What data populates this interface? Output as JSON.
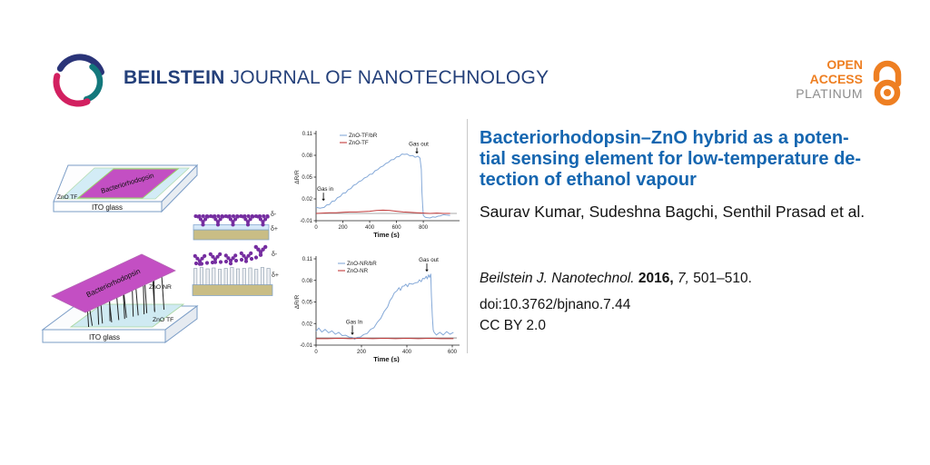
{
  "header": {
    "journal_bold": "BEILSTEIN",
    "journal_rest": " JOURNAL OF NANOTECHNOLOGY",
    "logo_colors": {
      "navy": "#2a3478",
      "teal": "#13787c",
      "crimson": "#d22060"
    },
    "open_access": {
      "line1": "OPEN",
      "line2": "ACCESS",
      "line3": "PLATINUM",
      "orange": "#ee7f22",
      "gray": "#8d8d8d"
    }
  },
  "article": {
    "title_lines": [
      "Bacteriorhodopsin–ZnO hybrid as a poten-",
      "tial sensing element for low-temperature de-",
      "tection of ethanol vapour"
    ],
    "title_color": "#1566b0",
    "authors": "Saurav Kumar, Sudeshna Bagchi, Senthil Prasad et al.",
    "citation": {
      "journal": "Beilstein J. Nanotechnol.",
      "year": "2016,",
      "volume": "7,",
      "pages": "501–510."
    },
    "doi": "doi:10.3762/bjnano.7.44",
    "license": "CC BY 2.0"
  },
  "figure": {
    "top_schematic": {
      "substrate": "ITO glass",
      "film": "ZnO TF",
      "protein": "Bacteriorhodopsin",
      "delta_minus": "δ-",
      "delta_plus": "δ+"
    },
    "bottom_schematic": {
      "substrate": "ITO glass",
      "film": "ZnO TF",
      "nanorods": "ZnO NR",
      "protein": "Bacteriorhodopsin",
      "delta_minus": "δ-",
      "delta_plus": "δ+"
    }
  },
  "chart_data": [
    {
      "type": "line",
      "xlabel": "Time (s)",
      "ylabel": "ΔR/R",
      "xlim": [
        0,
        1050
      ],
      "ylim": [
        -0.01,
        0.11
      ],
      "xticks": [
        0,
        200,
        400,
        600,
        800
      ],
      "yticks": [
        -0.01,
        0.02,
        0.05,
        0.08,
        0.11
      ],
      "grid": false,
      "legend_position": "top-left-inside",
      "zero_line": true,
      "annotations": [
        {
          "text": "Gas in",
          "x": 55,
          "text_y": 0.031,
          "tip_y": 0.017
        },
        {
          "text": "Gas out",
          "x": 752,
          "text_y": 0.093,
          "tip_y": 0.082
        }
      ],
      "series": [
        {
          "name": "ZnO-TF/bR",
          "color": "#85a9d8",
          "noisy": true,
          "x": [
            0,
            15,
            30,
            45,
            60,
            80,
            100,
            120,
            140,
            160,
            180,
            200,
            220,
            240,
            260,
            280,
            300,
            320,
            340,
            360,
            380,
            400,
            420,
            440,
            460,
            480,
            500,
            520,
            540,
            560,
            580,
            600,
            620,
            640,
            660,
            680,
            700,
            720,
            740,
            760,
            775,
            785,
            790,
            795,
            800,
            815,
            830,
            850,
            870,
            890,
            910,
            930,
            950,
            970,
            1000
          ],
          "y": [
            0.009,
            0.007,
            0.008,
            0.007,
            0.009,
            0.011,
            0.013,
            0.016,
            0.018,
            0.021,
            0.024,
            0.027,
            0.029,
            0.032,
            0.035,
            0.038,
            0.041,
            0.043,
            0.046,
            0.048,
            0.051,
            0.053,
            0.055,
            0.058,
            0.061,
            0.063,
            0.066,
            0.068,
            0.071,
            0.073,
            0.075,
            0.077,
            0.079,
            0.081,
            0.082,
            0.081,
            0.08,
            0.079,
            0.078,
            0.078,
            0.077,
            0.06,
            0.03,
            0.01,
            -0.002,
            -0.006,
            -0.005,
            -0.007,
            -0.004,
            -0.006,
            -0.003,
            -0.004,
            -0.001,
            -0.003,
            -0.002
          ]
        },
        {
          "name": "ZnO-TF",
          "color": "#c23b3b",
          "noisy": false,
          "x": [
            0,
            50,
            100,
            150,
            200,
            250,
            300,
            350,
            400,
            450,
            500,
            550,
            600,
            650,
            700,
            750,
            800,
            850,
            900,
            950,
            1000
          ],
          "y": [
            0,
            0.0005,
            0.001,
            0.001,
            0.0015,
            0.002,
            0.002,
            0.0025,
            0.003,
            0.004,
            0.0045,
            0.004,
            0.003,
            0.002,
            0.0015,
            0.001,
            0.0005,
            0,
            0.0005,
            0,
            0
          ]
        }
      ]
    },
    {
      "type": "line",
      "xlabel": "Time (s)",
      "ylabel": "ΔR/R",
      "xlim": [
        0,
        620
      ],
      "ylim": [
        -0.01,
        0.11
      ],
      "xticks": [
        0,
        200,
        400,
        600
      ],
      "yticks": [
        -0.01,
        0.02,
        0.05,
        0.08,
        0.11
      ],
      "grid": false,
      "legend_position": "top-left-inside",
      "zero_line": true,
      "annotations": [
        {
          "text": "Gas In",
          "x": 160,
          "text_y": 0.02,
          "tip_y": 0.004
        },
        {
          "text": "Gas out",
          "x": 488,
          "text_y": 0.106,
          "tip_y": 0.092
        }
      ],
      "series": [
        {
          "name": "ZnO-NR/bR",
          "color": "#85a9d8",
          "noisy": true,
          "x": [
            0,
            12,
            25,
            40,
            55,
            70,
            85,
            100,
            115,
            130,
            145,
            160,
            170,
            180,
            195,
            210,
            225,
            240,
            255,
            270,
            285,
            300,
            315,
            325,
            335,
            345,
            355,
            365,
            372,
            380,
            388,
            395,
            403,
            410,
            418,
            425,
            433,
            440,
            448,
            455,
            463,
            470,
            478,
            485,
            490,
            495,
            500,
            505,
            508,
            512,
            516,
            520,
            530,
            545,
            560,
            575,
            590,
            605
          ],
          "y": [
            0.01,
            0.013,
            0.009,
            0.011,
            0.008,
            0.009,
            0.006,
            0.007,
            0.004,
            0.003,
            0.002,
            0.0,
            -0.001,
            0.0,
            0.002,
            0.004,
            0.007,
            0.011,
            0.015,
            0.021,
            0.028,
            0.036,
            0.044,
            0.051,
            0.057,
            0.062,
            0.066,
            0.069,
            0.067,
            0.071,
            0.073,
            0.074,
            0.072,
            0.075,
            0.076,
            0.074,
            0.077,
            0.076,
            0.078,
            0.08,
            0.079,
            0.082,
            0.083,
            0.085,
            0.083,
            0.087,
            0.085,
            0.088,
            0.06,
            0.03,
            0.012,
            0.007,
            0.005,
            0.007,
            0.005,
            0.008,
            0.006,
            0.007
          ]
        },
        {
          "name": "ZnO-NR",
          "color": "#c23b3b",
          "noisy": false,
          "x": [
            0,
            50,
            100,
            150,
            200,
            250,
            300,
            350,
            400,
            450,
            500,
            550,
            605
          ],
          "y": [
            -0.001,
            -0.001,
            -0.0005,
            -0.001,
            -0.0005,
            -0.001,
            -0.0005,
            -0.001,
            -0.0005,
            -0.001,
            -0.0005,
            -0.001,
            -0.001
          ]
        }
      ]
    }
  ]
}
